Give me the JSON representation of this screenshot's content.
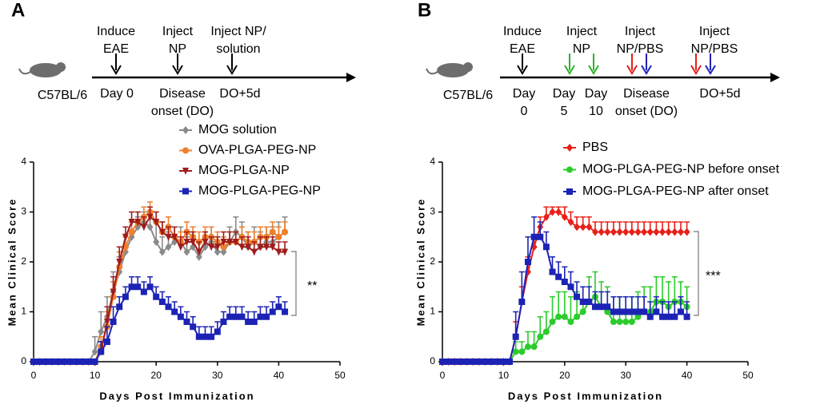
{
  "panel_labels": [
    "A",
    "B"
  ],
  "timelines": [
    {
      "strain": "C57BL/6",
      "events": [
        {
          "above": [
            "Induce",
            "EAE"
          ],
          "below": [
            "Day 0"
          ],
          "arrows": [
            "#000000"
          ]
        },
        {
          "above": [
            "Inject",
            "NP"
          ],
          "below": [
            "Disease",
            "onset (DO)"
          ],
          "arrows": [
            "#000000"
          ]
        },
        {
          "above": [
            "Inject NP/",
            "solution"
          ],
          "below": [
            "DO+5d"
          ],
          "arrows": [
            "#000000"
          ]
        }
      ]
    },
    {
      "strain": "C57BL/6",
      "events": [
        {
          "above": [
            "Induce",
            "EAE"
          ],
          "below": [
            "Day",
            "0"
          ],
          "arrows": [
            "#000000"
          ]
        },
        {
          "above": [
            "Inject",
            "NP"
          ],
          "below": [
            "Day",
            "5"
          ],
          "arrows": [
            "#2bb52b"
          ]
        },
        {
          "above": [],
          "below": [
            "Day",
            "10"
          ],
          "arrows": [
            "#2bb52b"
          ]
        },
        {
          "above": [
            "Inject",
            "NP/PBS"
          ],
          "below": [
            "Disease",
            "onset (DO)"
          ],
          "arrows": [
            "#e8201a",
            "#1c23b4"
          ]
        },
        {
          "above": [
            "Inject",
            "NP/PBS"
          ],
          "below": [
            "DO+5d"
          ],
          "arrows": [
            "#e8201a",
            "#1c23b4"
          ]
        }
      ]
    }
  ],
  "chart_data": [
    {
      "type": "line",
      "x_label": "Days Post Immunization",
      "y_label": "Mean Clinical Score",
      "significance": "**",
      "xlim": [
        0,
        50
      ],
      "xticks": [
        0,
        10,
        20,
        30,
        40,
        50
      ],
      "ylim": [
        0,
        4
      ],
      "yticks": [
        0,
        1,
        2,
        3,
        4
      ],
      "x": [
        0,
        1,
        2,
        3,
        4,
        5,
        6,
        7,
        8,
        9,
        10,
        11,
        12,
        13,
        14,
        15,
        16,
        17,
        18,
        19,
        20,
        21,
        22,
        23,
        24,
        25,
        26,
        27,
        28,
        29,
        30,
        31,
        32,
        33,
        34,
        35,
        36,
        37,
        38,
        39,
        40,
        41
      ],
      "series": [
        {
          "name": "MOG solution",
          "color": "#8a8a8a",
          "marker": "diamond",
          "values": [
            0,
            0,
            0,
            0,
            0,
            0,
            0,
            0,
            0,
            0,
            0.2,
            0.6,
            0.9,
            1.4,
            1.8,
            2.2,
            2.5,
            2.7,
            2.8,
            2.7,
            2.4,
            2.2,
            2.3,
            2.4,
            2.4,
            2.2,
            2.3,
            2.1,
            2.3,
            2.4,
            2.2,
            2.2,
            2.4,
            2.6,
            2.5,
            2.3,
            2.4,
            2.3,
            2.4,
            2.4,
            2.5,
            2.6
          ],
          "errors": [
            0,
            0,
            0,
            0,
            0,
            0,
            0,
            0,
            0,
            0,
            0.3,
            0.4,
            0.4,
            0.4,
            0.3,
            0.3,
            0.3,
            0.2,
            0.2,
            0.3,
            0.4,
            0.3,
            0.3,
            0.3,
            0.3,
            0.3,
            0.3,
            0.3,
            0.3,
            0.3,
            0.3,
            0.3,
            0.3,
            0.3,
            0.3,
            0.3,
            0.3,
            0.3,
            0.3,
            0.3,
            0.3,
            0.3
          ]
        },
        {
          "name": "OVA-PLGA-PEG-NP",
          "color": "#f07f2a",
          "marker": "circle",
          "values": [
            0,
            0,
            0,
            0,
            0,
            0,
            0,
            0,
            0,
            0,
            0,
            0.3,
            0.7,
            1.3,
            1.9,
            2.3,
            2.6,
            2.8,
            2.9,
            3.0,
            2.8,
            2.6,
            2.7,
            2.5,
            2.4,
            2.6,
            2.5,
            2.4,
            2.5,
            2.5,
            2.4,
            2.3,
            2.4,
            2.4,
            2.5,
            2.4,
            2.4,
            2.5,
            2.5,
            2.6,
            2.5,
            2.6
          ],
          "errors": [
            0,
            0,
            0,
            0,
            0,
            0,
            0,
            0,
            0,
            0,
            0,
            0.2,
            0.3,
            0.3,
            0.3,
            0.2,
            0.2,
            0.2,
            0.2,
            0.2,
            0.2,
            0.2,
            0.2,
            0.2,
            0.2,
            0.2,
            0.2,
            0.2,
            0.2,
            0.2,
            0.2,
            0.2,
            0.2,
            0.2,
            0.2,
            0.2,
            0.2,
            0.2,
            0.2,
            0.2,
            0.2,
            0.2
          ]
        },
        {
          "name": "MOG-PLGA-NP",
          "color": "#a01c1c",
          "marker": "triangle-down",
          "values": [
            0,
            0,
            0,
            0,
            0,
            0,
            0,
            0,
            0,
            0,
            0,
            0.2,
            0.8,
            1.4,
            2.0,
            2.5,
            2.8,
            2.8,
            2.7,
            2.9,
            2.8,
            2.6,
            2.5,
            2.5,
            2.3,
            2.4,
            2.4,
            2.2,
            2.4,
            2.3,
            2.3,
            2.4,
            2.4,
            2.4,
            2.3,
            2.3,
            2.2,
            2.3,
            2.3,
            2.3,
            2.2,
            2.2
          ],
          "errors": [
            0,
            0,
            0,
            0,
            0,
            0,
            0,
            0,
            0,
            0,
            0,
            0.2,
            0.3,
            0.3,
            0.3,
            0.2,
            0.2,
            0.2,
            0.2,
            0.2,
            0.2,
            0.2,
            0.2,
            0.2,
            0.2,
            0.2,
            0.2,
            0.2,
            0.2,
            0.2,
            0.2,
            0.2,
            0.2,
            0.2,
            0.2,
            0.2,
            0.2,
            0.2,
            0.2,
            0.2,
            0.2,
            0.2
          ]
        },
        {
          "name": "MOG-PLGA-PEG-NP",
          "color": "#1c23b4",
          "marker": "square",
          "values": [
            0,
            0,
            0,
            0,
            0,
            0,
            0,
            0,
            0,
            0,
            0,
            0.2,
            0.4,
            0.8,
            1.1,
            1.3,
            1.5,
            1.5,
            1.4,
            1.5,
            1.3,
            1.2,
            1.1,
            1.0,
            0.9,
            0.8,
            0.7,
            0.5,
            0.5,
            0.5,
            0.6,
            0.8,
            0.9,
            0.9,
            0.9,
            0.8,
            0.8,
            0.9,
            0.9,
            1.0,
            1.1,
            1.0
          ],
          "errors": [
            0,
            0,
            0,
            0,
            0,
            0,
            0,
            0,
            0,
            0,
            0,
            0.2,
            0.3,
            0.3,
            0.2,
            0.2,
            0.2,
            0.2,
            0.2,
            0.2,
            0.2,
            0.2,
            0.2,
            0.2,
            0.2,
            0.2,
            0.2,
            0.2,
            0.2,
            0.2,
            0.2,
            0.2,
            0.2,
            0.2,
            0.2,
            0.2,
            0.2,
            0.2,
            0.2,
            0.2,
            0.2,
            0.2
          ]
        }
      ]
    },
    {
      "type": "line",
      "x_label": "Days Post Immunization",
      "y_label": "Mean Clinical Score",
      "significance": "***",
      "xlim": [
        0,
        50
      ],
      "xticks": [
        0,
        10,
        20,
        30,
        40,
        50
      ],
      "ylim": [
        0,
        4
      ],
      "yticks": [
        0,
        1,
        2,
        3,
        4
      ],
      "x": [
        0,
        1,
        2,
        3,
        4,
        5,
        6,
        7,
        8,
        9,
        10,
        11,
        12,
        13,
        14,
        15,
        16,
        17,
        18,
        19,
        20,
        21,
        22,
        23,
        24,
        25,
        26,
        27,
        28,
        29,
        30,
        31,
        32,
        33,
        34,
        35,
        36,
        37,
        38,
        39,
        40
      ],
      "series": [
        {
          "name": "PBS",
          "color": "#e8201a",
          "marker": "diamond",
          "values": [
            0,
            0,
            0,
            0,
            0,
            0,
            0,
            0,
            0,
            0,
            0,
            0,
            0.5,
            1.2,
            1.8,
            2.3,
            2.7,
            2.9,
            3.0,
            3.0,
            2.9,
            2.8,
            2.7,
            2.7,
            2.7,
            2.6,
            2.6,
            2.6,
            2.6,
            2.6,
            2.6,
            2.6,
            2.6,
            2.6,
            2.6,
            2.6,
            2.6,
            2.6,
            2.6,
            2.6,
            2.6
          ],
          "errors": [
            0,
            0,
            0,
            0,
            0,
            0,
            0,
            0,
            0,
            0,
            0,
            0,
            0.3,
            0.3,
            0.3,
            0.2,
            0.2,
            0.2,
            0.1,
            0.1,
            0.2,
            0.2,
            0.2,
            0.2,
            0.2,
            0.2,
            0.2,
            0.2,
            0.2,
            0.2,
            0.2,
            0.2,
            0.2,
            0.2,
            0.2,
            0.2,
            0.2,
            0.2,
            0.2,
            0.2,
            0.2
          ]
        },
        {
          "name": "MOG-PLGA-PEG-NP before onset",
          "color": "#2bcc2b",
          "marker": "circle",
          "values": [
            0,
            0,
            0,
            0,
            0,
            0,
            0,
            0,
            0,
            0,
            0,
            0,
            0.2,
            0.2,
            0.3,
            0.3,
            0.5,
            0.6,
            0.8,
            0.9,
            0.9,
            0.8,
            0.9,
            1.0,
            1.2,
            1.3,
            1.1,
            1.0,
            0.8,
            0.8,
            0.8,
            0.8,
            0.9,
            1.0,
            1.0,
            1.2,
            1.2,
            1.1,
            1.2,
            1.2,
            1.1
          ],
          "errors": [
            0,
            0,
            0,
            0,
            0,
            0,
            0,
            0,
            0,
            0,
            0,
            0,
            0.2,
            0.2,
            0.3,
            0.3,
            0.4,
            0.4,
            0.5,
            0.5,
            0.5,
            0.5,
            0.5,
            0.5,
            0.5,
            0.5,
            0.5,
            0.5,
            0.5,
            0.5,
            0.5,
            0.5,
            0.5,
            0.5,
            0.5,
            0.5,
            0.5,
            0.5,
            0.5,
            0.4,
            0.4
          ]
        },
        {
          "name": "MOG-PLGA-PEG-NP after onset",
          "color": "#1c23b4",
          "marker": "square",
          "values": [
            0,
            0,
            0,
            0,
            0,
            0,
            0,
            0,
            0,
            0,
            0,
            0,
            0.5,
            1.2,
            2.0,
            2.5,
            2.5,
            2.3,
            1.8,
            1.7,
            1.6,
            1.5,
            1.3,
            1.2,
            1.2,
            1.1,
            1.1,
            1.1,
            1.0,
            1.0,
            1.0,
            1.0,
            1.0,
            1.0,
            0.9,
            1.0,
            0.9,
            0.9,
            0.9,
            1.0,
            0.9
          ],
          "errors": [
            0,
            0,
            0,
            0,
            0,
            0,
            0,
            0,
            0,
            0,
            0,
            0,
            0.5,
            0.6,
            0.5,
            0.4,
            0.3,
            0.3,
            0.3,
            0.3,
            0.3,
            0.3,
            0.3,
            0.3,
            0.3,
            0.3,
            0.3,
            0.3,
            0.3,
            0.3,
            0.3,
            0.3,
            0.3,
            0.3,
            0.3,
            0.3,
            0.3,
            0.3,
            0.3,
            0.3,
            0.3
          ]
        }
      ]
    }
  ]
}
